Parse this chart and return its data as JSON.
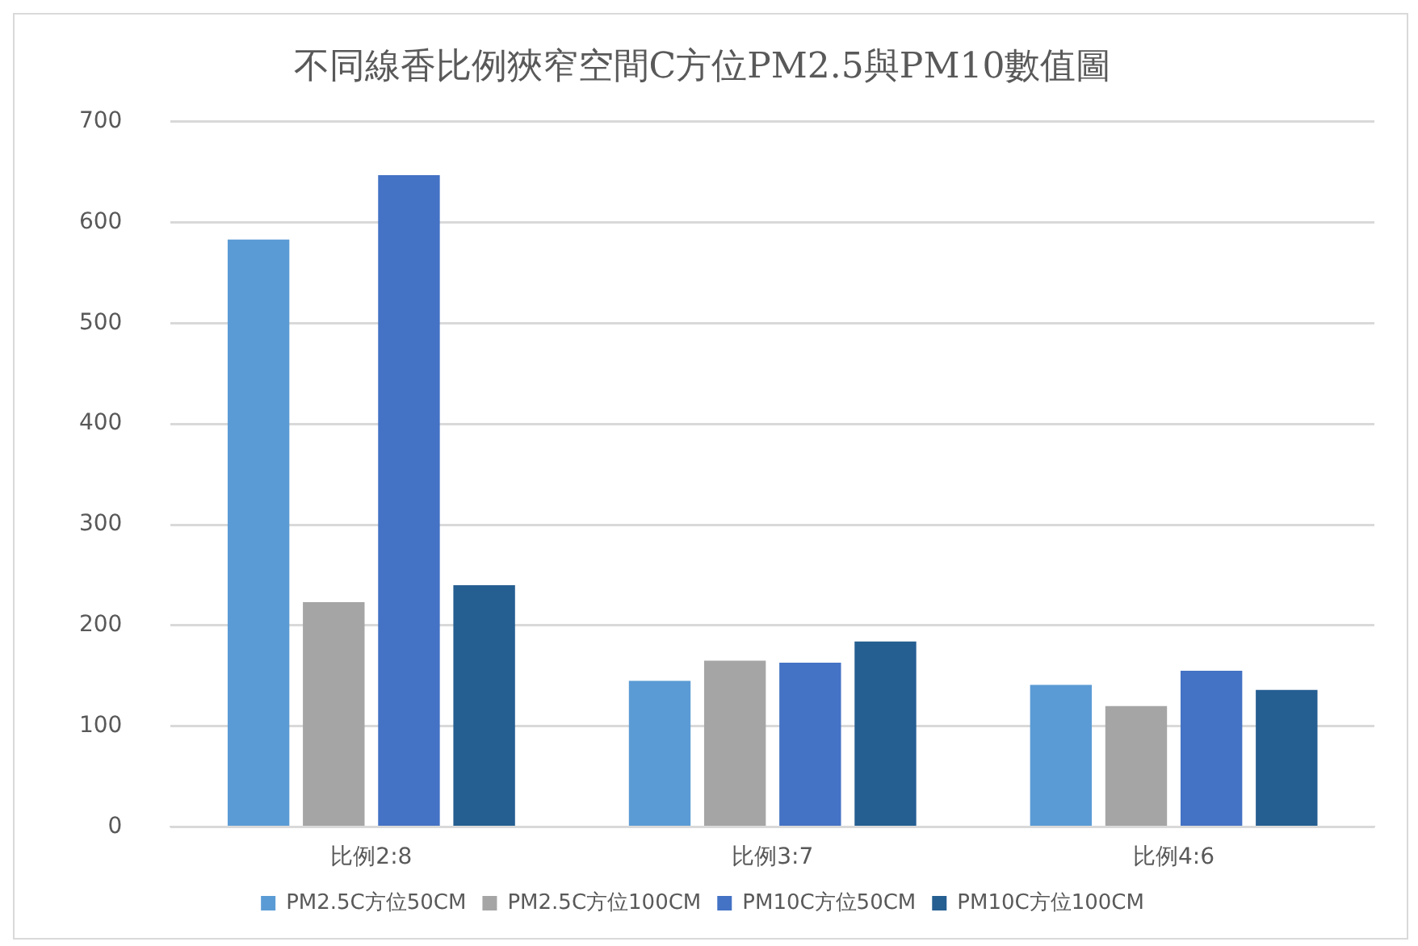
{
  "chart_data": {
    "type": "bar",
    "title": "不同線香比例狹窄空間C方位PM2.5與PM10數值圖",
    "categories": [
      "比例2:8",
      "比例3:7",
      "比例4:6"
    ],
    "series": [
      {
        "name": "PM2.5C方位50CM",
        "color": "#5b9bd5",
        "values": [
          583,
          145,
          141
        ]
      },
      {
        "name": "PM2.5C方位100CM",
        "color": "#a5a5a5",
        "values": [
          223,
          165,
          120
        ]
      },
      {
        "name": "PM10C方位50CM",
        "color": "#4472c4",
        "values": [
          647,
          163,
          155
        ]
      },
      {
        "name": "PM10C方位100CM",
        "color": "#255e91",
        "values": [
          240,
          184,
          136
        ]
      }
    ],
    "ylim": [
      0,
      700
    ],
    "yticks": [
      0,
      100,
      200,
      300,
      400,
      500,
      600,
      700
    ],
    "grid": "y",
    "legend": "bottom"
  }
}
